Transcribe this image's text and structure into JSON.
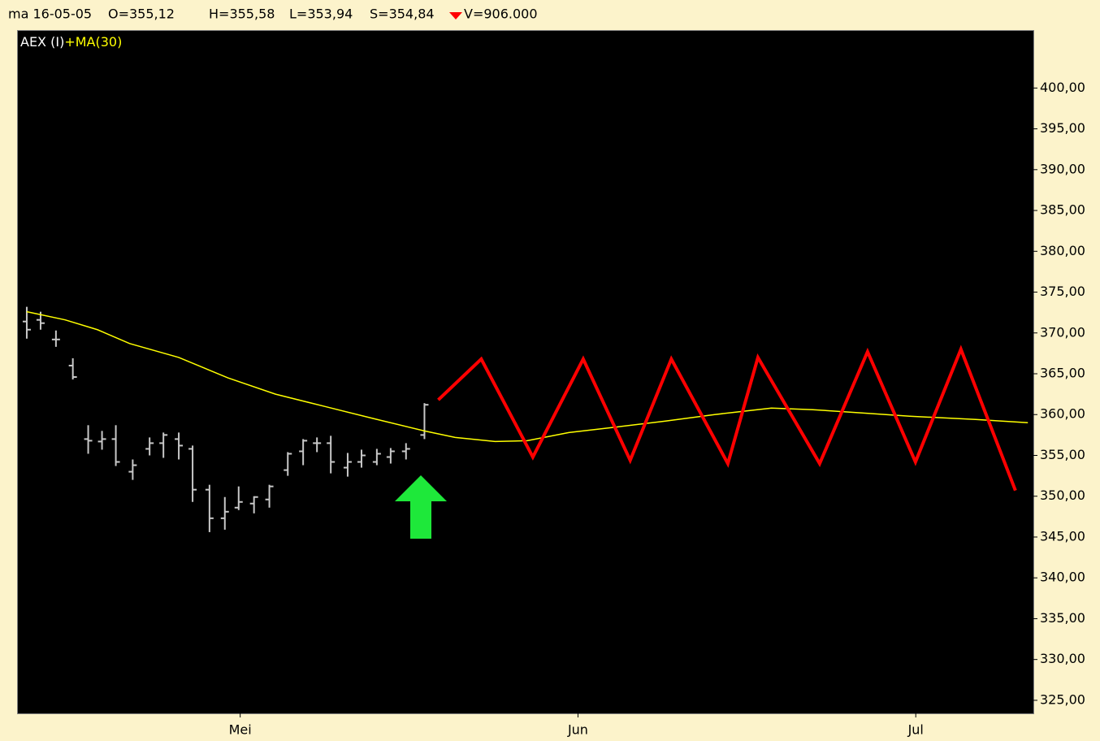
{
  "header": {
    "date": "ma 16-05-05",
    "open": "O=355,12",
    "high": "H=355,58",
    "low": "L=353,94",
    "close": "S=354,84",
    "volume": "V=906.000"
  },
  "chart_data": {
    "type": "ohlc",
    "xlim": [
      -0.58,
      65.56
    ],
    "xticks": [
      {
        "value": 13.9,
        "label": "Mei"
      },
      {
        "value": 35.9,
        "label": "Jun"
      },
      {
        "value": 57.9,
        "label": "Jul"
      }
    ],
    "ylim": [
      323.4,
      407
    ],
    "yticks": [
      {
        "value": 325,
        "label": "325,00"
      },
      {
        "value": 330,
        "label": "330,00"
      },
      {
        "value": 335,
        "label": "335,00"
      },
      {
        "value": 340,
        "label": "340,00"
      },
      {
        "value": 345,
        "label": "345,00"
      },
      {
        "value": 350,
        "label": "350,00"
      },
      {
        "value": 355,
        "label": "355,00"
      },
      {
        "value": 360,
        "label": "360,00"
      },
      {
        "value": 365,
        "label": "365,00"
      },
      {
        "value": 370,
        "label": "370,00"
      },
      {
        "value": 375,
        "label": "375,00"
      },
      {
        "value": 380,
        "label": "380,00"
      },
      {
        "value": 385,
        "label": "385,00"
      },
      {
        "value": 390,
        "label": "390,00"
      },
      {
        "value": 395,
        "label": "395,00"
      },
      {
        "value": 400,
        "label": "400,00"
      }
    ],
    "grid": false,
    "series": [
      {
        "name": "AEX (I)",
        "type": "ohlc",
        "color": "#c8c8c8",
        "x": [
          0,
          0.9,
          1.9,
          3.0,
          4.0,
          4.9,
          5.8,
          6.9,
          8.0,
          8.9,
          9.9,
          10.8,
          11.9,
          12.9,
          13.8,
          14.8,
          15.8,
          17.0,
          18.0,
          18.9,
          19.8,
          20.9,
          21.8,
          22.8,
          23.7,
          24.7,
          25.9
        ],
        "open": [
          371.4,
          371.6,
          369.2,
          366.0,
          357.0,
          356.7,
          357.0,
          353.0,
          355.8,
          356.5,
          357.0,
          355.8,
          350.8,
          347.3,
          348.6,
          349.1,
          349.6,
          353.2,
          355.5,
          356.5,
          356.5,
          353.5,
          354.2,
          354.2,
          354.8,
          355.5,
          357.5
        ],
        "high": [
          373.2,
          372.6,
          370.3,
          366.9,
          358.7,
          358.0,
          358.7,
          354.5,
          357.2,
          357.8,
          357.8,
          356.2,
          351.4,
          349.9,
          351.2,
          350.0,
          351.4,
          355.4,
          357.0,
          357.2,
          357.4,
          355.3,
          355.7,
          355.8,
          355.9,
          356.5,
          361.4
        ],
        "low": [
          369.3,
          370.4,
          368.3,
          364.3,
          355.2,
          355.7,
          353.7,
          352.0,
          355.0,
          354.7,
          354.5,
          349.3,
          345.6,
          345.9,
          348.3,
          347.9,
          348.6,
          352.5,
          353.8,
          355.4,
          352.8,
          352.4,
          353.5,
          353.8,
          354.0,
          354.5,
          357.0
        ],
        "close": [
          370.4,
          371.2,
          369.2,
          364.6,
          356.8,
          357.0,
          354.2,
          353.8,
          356.5,
          357.5,
          356.2,
          350.8,
          347.3,
          348.1,
          349.3,
          349.9,
          351.2,
          355.2,
          356.8,
          356.5,
          354.2,
          354.2,
          355.0,
          355.2,
          355.5,
          355.8,
          361.2
        ]
      },
      {
        "name": "+MA(30)",
        "type": "line",
        "color": "#ffff00",
        "width": 1.5,
        "x": [
          0,
          2.5,
          4.6,
          6.7,
          9.9,
          13.1,
          16.2,
          19.4,
          22.6,
          25.9,
          27.9,
          30.5,
          32.6,
          35.3,
          38.5,
          41.6,
          44.8,
          48.5,
          51.2,
          54.4,
          57.5,
          61.8,
          65.2
        ],
        "values": [
          372.6,
          371.6,
          370.4,
          368.7,
          367.0,
          364.5,
          362.5,
          361.0,
          359.5,
          358.0,
          357.2,
          356.7,
          356.8,
          357.8,
          358.5,
          359.2,
          360.0,
          360.8,
          360.6,
          360.2,
          359.8,
          359.4,
          359.0
        ]
      },
      {
        "type": "line",
        "color": "#ff0000",
        "width": 4,
        "x": [
          26.8,
          29.6,
          32.96,
          36.24,
          39.3,
          41.98,
          45.66,
          47.62,
          51.64,
          54.76,
          57.88,
          60.84,
          64.39
        ],
        "values": [
          361.8,
          366.8,
          354.8,
          366.8,
          354.4,
          366.8,
          354.0,
          367.0,
          354.0,
          367.7,
          354.2,
          368.0,
          350.7
        ]
      }
    ]
  }
}
